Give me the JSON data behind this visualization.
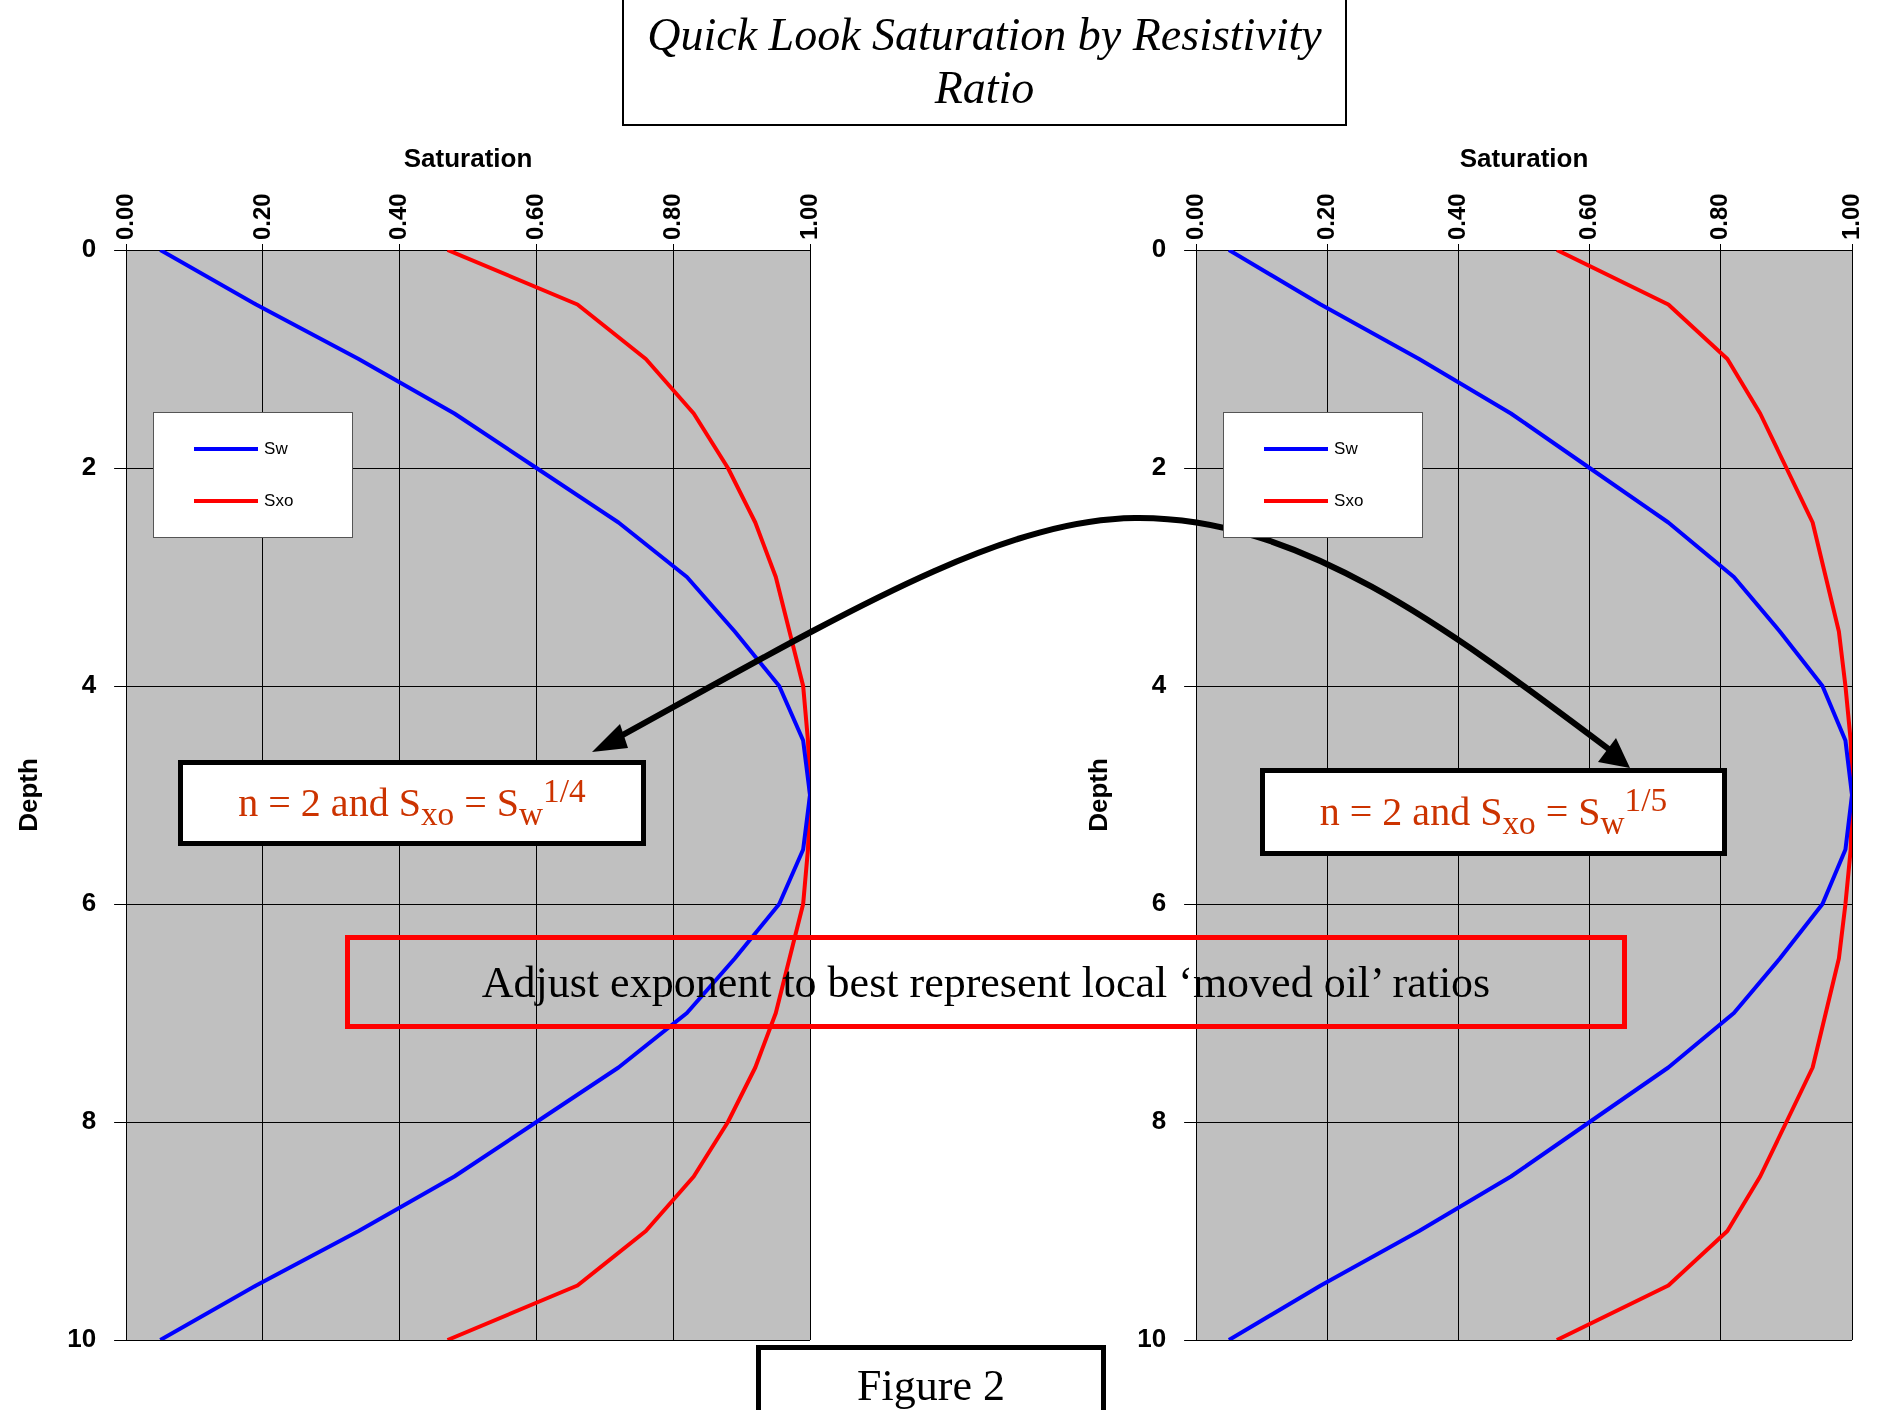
{
  "chart_data": [
    {
      "type": "line",
      "title": "Quick Look Saturation by Resistivity Ratio",
      "xlabel": "Saturation",
      "ylabel": "Depth",
      "orientation": "horizontal",
      "x": [
        0,
        0.5,
        1,
        1.5,
        2,
        2.5,
        3,
        3.5,
        4,
        4.5,
        5,
        5.5,
        6,
        6.5,
        7,
        7.5,
        8,
        8.5,
        9,
        9.5,
        10
      ],
      "series": [
        {
          "name": "Sw",
          "color": "#0000ff",
          "values": [
            0.05,
            0.19,
            0.34,
            0.48,
            0.6,
            0.72,
            0.82,
            0.89,
            0.955,
            0.99,
            1,
            0.99,
            0.955,
            0.89,
            0.82,
            0.72,
            0.6,
            0.48,
            0.34,
            0.19,
            0.05
          ]
        },
        {
          "name": "Sxo",
          "color": "#ff0000",
          "values": [
            0.47,
            0.66,
            0.76,
            0.83,
            0.88,
            0.92,
            0.95,
            0.97,
            0.99,
            0.997,
            1,
            0.997,
            0.99,
            0.97,
            0.95,
            0.92,
            0.88,
            0.83,
            0.76,
            0.66,
            0.47
          ]
        }
      ],
      "xlim": [
        0,
        1
      ],
      "xticks": [
        {
          "value": 0,
          "label": "0.00"
        },
        {
          "value": 0.2,
          "label": "0.20"
        },
        {
          "value": 0.4,
          "label": "0.40"
        },
        {
          "value": 0.6,
          "label": "0.60"
        },
        {
          "value": 0.8,
          "label": "0.80"
        },
        {
          "value": 1,
          "label": "1.00"
        }
      ],
      "ylim": [
        10,
        0
      ],
      "yticks": [
        0,
        2,
        4,
        6,
        8,
        10
      ],
      "grid": true,
      "legend": "top left",
      "marker": "none",
      "line_style": "solid",
      "annotations": [
        "n = 2 and S$_{xo}$ = S$_{w}$$^{1/4}$",
        "Adjust exponent to best represent local ‘moved oil’ ratios",
        "Figure 2"
      ]
    },
    {
      "type": "line",
      "xlabel": "Saturation",
      "ylabel": "Depth",
      "orientation": "horizontal",
      "x": [
        0,
        0.5,
        1,
        1.5,
        2,
        2.5,
        3,
        3.5,
        4,
        4.5,
        5,
        5.5,
        6,
        6.5,
        7,
        7.5,
        8,
        8.5,
        9,
        9.5,
        10
      ],
      "series": [
        {
          "name": "Sw",
          "color": "#0000ff",
          "values": [
            0.05,
            0.19,
            0.34,
            0.48,
            0.6,
            0.72,
            0.82,
            0.89,
            0.955,
            0.99,
            1,
            0.99,
            0.955,
            0.89,
            0.82,
            0.72,
            0.6,
            0.48,
            0.34,
            0.19,
            0.05
          ]
        },
        {
          "name": "Sxo",
          "color": "#ff0000",
          "values": [
            0.55,
            0.72,
            0.81,
            0.86,
            0.9,
            0.94,
            0.96,
            0.98,
            0.99,
            0.998,
            1,
            0.998,
            0.99,
            0.98,
            0.96,
            0.94,
            0.9,
            0.86,
            0.81,
            0.72,
            0.55
          ]
        }
      ],
      "xlim": [
        0,
        1
      ],
      "xticks": [
        {
          "value": 0,
          "label": "0.00"
        },
        {
          "value": 0.2,
          "label": "0.20"
        },
        {
          "value": 0.4,
          "label": "0.40"
        },
        {
          "value": 0.6,
          "label": "0.60"
        },
        {
          "value": 0.8,
          "label": "0.80"
        },
        {
          "value": 1,
          "label": "1.00"
        }
      ],
      "ylim": [
        10,
        0
      ],
      "yticks": [
        0,
        2,
        4,
        6,
        8,
        10
      ],
      "grid": true,
      "legend": "top left",
      "marker": "none",
      "line_style": "solid",
      "annotations": [
        "n = 2 and S$_{xo}$ = S$_{w}$$^{1/5}$"
      ]
    }
  ]
}
